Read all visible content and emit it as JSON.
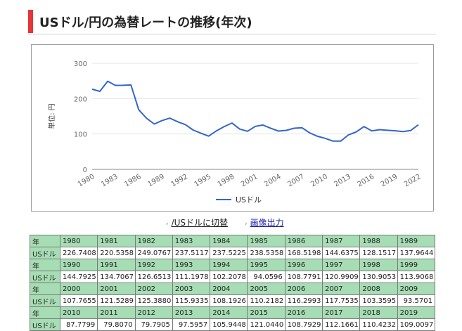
{
  "page": {
    "title": "USドル/円の為替レートの推移(年次)"
  },
  "chart_data": {
    "type": "line",
    "title": "",
    "ylabel": "単位: 円",
    "xlabel": "",
    "ylim": [
      0,
      300
    ],
    "yticks": [
      0,
      100,
      200,
      300
    ],
    "xticks": [
      "1980",
      "1983",
      "1986",
      "1989",
      "1992",
      "1995",
      "1998",
      "2001",
      "2004",
      "2007",
      "2010",
      "2013",
      "2016",
      "2019",
      "2022"
    ],
    "x": [
      1980,
      1981,
      1982,
      1983,
      1984,
      1985,
      1986,
      1987,
      1988,
      1989,
      1990,
      1991,
      1992,
      1993,
      1994,
      1995,
      1996,
      1997,
      1998,
      1999,
      2000,
      2001,
      2002,
      2003,
      2004,
      2005,
      2006,
      2007,
      2008,
      2009,
      2010,
      2011,
      2012,
      2013,
      2014,
      2015,
      2016,
      2017,
      2018,
      2019,
      2020,
      2021,
      2022
    ],
    "series": [
      {
        "name": "USドル",
        "values": [
          226.7408,
          220.5358,
          249.0767,
          237.5117,
          237.5225,
          238.5358,
          168.5198,
          144.6375,
          128.1517,
          137.9644,
          144.7925,
          134.7067,
          126.6513,
          111.1978,
          102.2078,
          94.0596,
          108.7791,
          120.9909,
          130.9053,
          113.9068,
          107.7655,
          121.5289,
          125.388,
          115.9335,
          108.1926,
          110.2182,
          116.2993,
          117.7535,
          103.3595,
          93.5701,
          87.7799,
          79.807,
          79.7905,
          97.5957,
          105.9448,
          121.044,
          108.7929,
          112.1661,
          110.4232,
          109.0097,
          106.8,
          109.8,
          126.1
        ],
        "color": "#3366cc"
      }
    ],
    "grid": true,
    "legend": "bottom"
  },
  "links": {
    "switch_label": "/USドルに切替",
    "image_label": "画像出力"
  },
  "table": {
    "rowlabel_year": "年",
    "rowlabel_usd": "USドル",
    "rows": [
      {
        "years": [
          "1980",
          "1981",
          "1982",
          "1983",
          "1984",
          "1985",
          "1986",
          "1987",
          "1988",
          "1989"
        ],
        "values": [
          "226.7408",
          "220.5358",
          "249.0767",
          "237.5117",
          "237.5225",
          "238.5358",
          "168.5198",
          "144.6375",
          "128.1517",
          "137.9644"
        ]
      },
      {
        "years": [
          "1990",
          "1991",
          "1992",
          "1993",
          "1994",
          "1995",
          "1996",
          "1997",
          "1998",
          "1999"
        ],
        "values": [
          "144.7925",
          "134.7067",
          "126.6513",
          "111.1978",
          "102.2078",
          "94.0596",
          "108.7791",
          "120.9909",
          "130.9053",
          "113.9068"
        ]
      },
      {
        "years": [
          "2000",
          "2001",
          "2002",
          "2003",
          "2004",
          "2005",
          "2006",
          "2007",
          "2008",
          "2009"
        ],
        "values": [
          "107.7655",
          "121.5289",
          "125.3880",
          "115.9335",
          "108.1926",
          "110.2182",
          "116.2993",
          "117.7535",
          "103.3595",
          "93.5701"
        ]
      },
      {
        "years": [
          "2010",
          "2011",
          "2012",
          "2013",
          "2014",
          "2015",
          "2016",
          "2017",
          "2018",
          "2019"
        ],
        "values": [
          "87.7799",
          "79.8070",
          "79.7905",
          "97.5957",
          "105.9448",
          "121.0440",
          "108.7929",
          "112.1661",
          "110.4232",
          "109.0097"
        ]
      }
    ]
  }
}
